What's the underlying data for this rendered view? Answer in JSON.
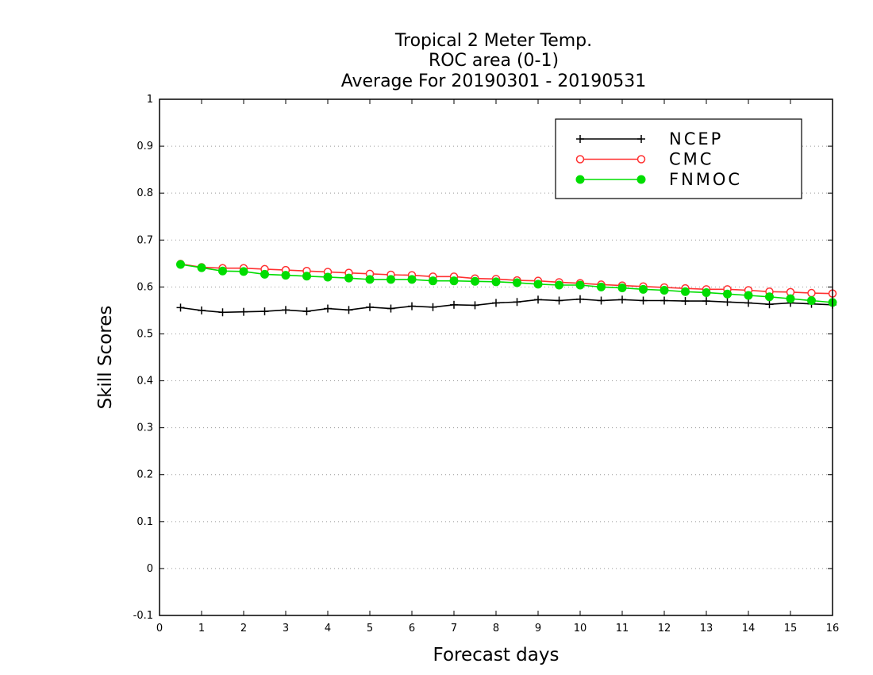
{
  "chart_data": {
    "type": "line",
    "title_lines": [
      "Tropical 2 Meter Temp.",
      "ROC area (0-1)",
      "Average For 20190301 - 20190531"
    ],
    "xlabel": "Forecast days",
    "ylabel": "Skill Scores",
    "xlim": [
      0,
      16
    ],
    "ylim": [
      -0.1,
      1
    ],
    "xticks": [
      "0",
      "1",
      "2",
      "3",
      "4",
      "5",
      "6",
      "7",
      "8",
      "9",
      "10",
      "11",
      "12",
      "13",
      "14",
      "15",
      "16"
    ],
    "yticks": [
      "-0.1",
      "0",
      "0.1",
      "0.2",
      "0.3",
      "0.4",
      "0.5",
      "0.6",
      "0.7",
      "0.8",
      "0.9",
      "1"
    ],
    "grid": "dotted horizontal",
    "legend_position": "top-right",
    "x": [
      0.5,
      1,
      1.5,
      2,
      2.5,
      3,
      3.5,
      4,
      4.5,
      5,
      5.5,
      6,
      6.5,
      7,
      7.5,
      8,
      8.5,
      9,
      9.5,
      10,
      10.5,
      11,
      11.5,
      12,
      12.5,
      13,
      13.5,
      14,
      14.5,
      15,
      15.5,
      16
    ],
    "series": [
      {
        "name": "NCEP",
        "color": "#000000",
        "marker": "plus",
        "values": [
          0.556,
          0.55,
          0.546,
          0.547,
          0.548,
          0.551,
          0.548,
          0.554,
          0.551,
          0.557,
          0.554,
          0.559,
          0.557,
          0.562,
          0.561,
          0.566,
          0.568,
          0.573,
          0.571,
          0.574,
          0.571,
          0.573,
          0.571,
          0.571,
          0.57,
          0.57,
          0.568,
          0.566,
          0.563,
          0.566,
          0.564,
          0.562
        ]
      },
      {
        "name": "CMC",
        "color": "#ff3030",
        "marker": "open-circle",
        "values": [
          0.649,
          0.642,
          0.64,
          0.64,
          0.638,
          0.636,
          0.634,
          0.632,
          0.63,
          0.628,
          0.626,
          0.625,
          0.622,
          0.622,
          0.618,
          0.617,
          0.614,
          0.613,
          0.61,
          0.608,
          0.605,
          0.603,
          0.601,
          0.599,
          0.597,
          0.595,
          0.595,
          0.593,
          0.59,
          0.589,
          0.587,
          0.586
        ]
      },
      {
        "name": "FNMOC",
        "color": "#00dd00",
        "marker": "filled-circle",
        "values": [
          0.648,
          0.641,
          0.634,
          0.633,
          0.627,
          0.625,
          0.623,
          0.621,
          0.619,
          0.616,
          0.616,
          0.616,
          0.613,
          0.613,
          0.612,
          0.611,
          0.609,
          0.606,
          0.604,
          0.604,
          0.6,
          0.598,
          0.595,
          0.593,
          0.59,
          0.588,
          0.585,
          0.582,
          0.579,
          0.575,
          0.571,
          0.567
        ]
      }
    ]
  }
}
